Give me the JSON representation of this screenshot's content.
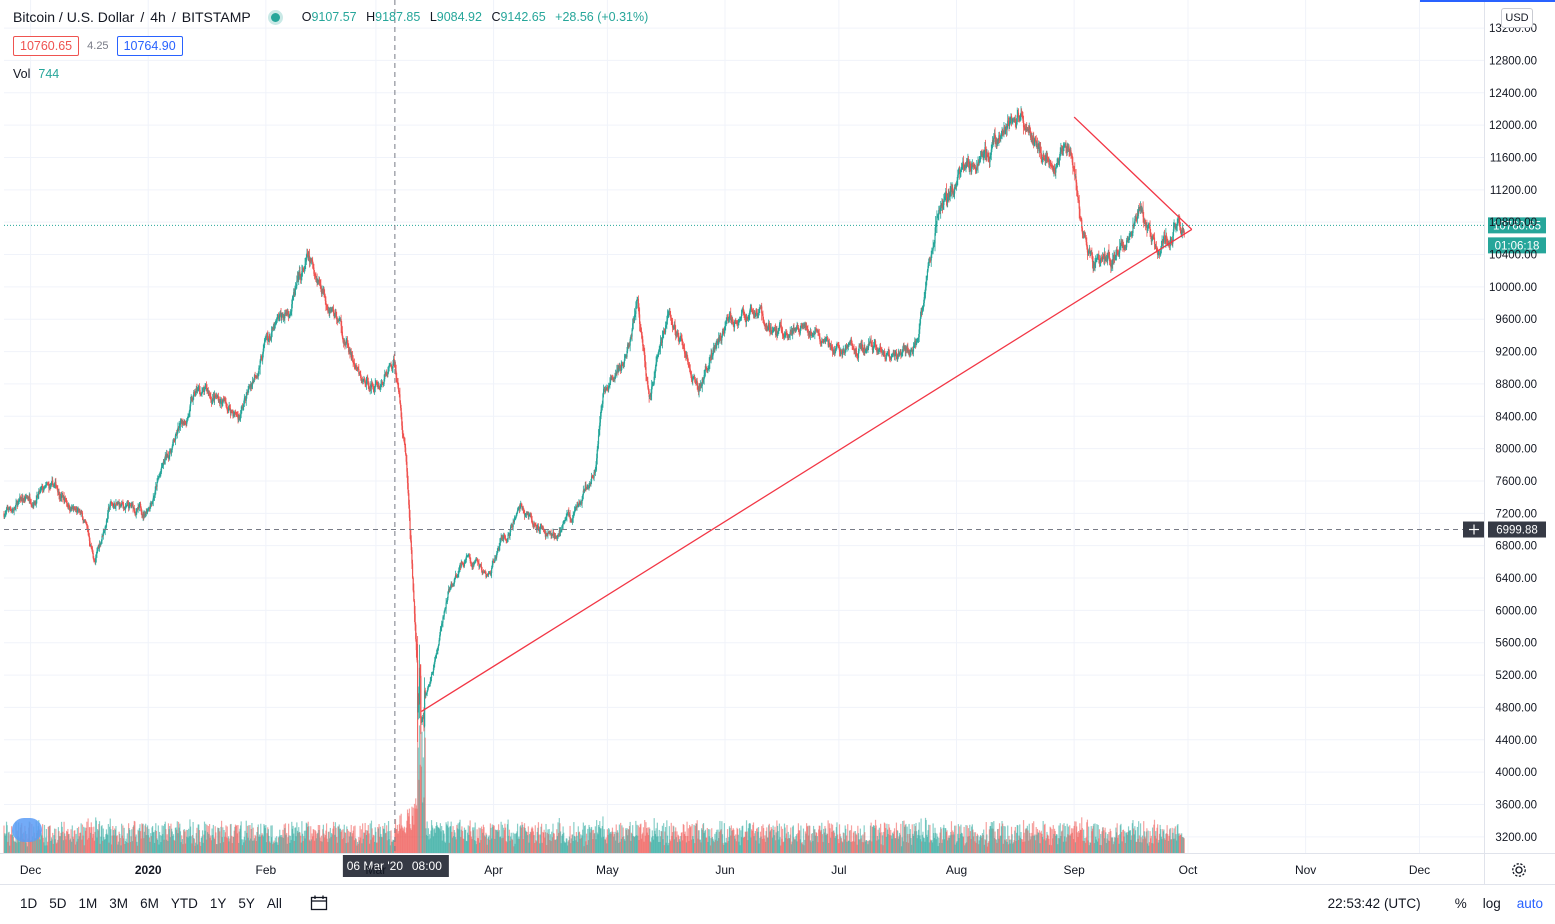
{
  "header": {
    "symbol": "Bitcoin / U.S. Dollar",
    "interval": "4h",
    "exchange": "BITSTAMP",
    "ohlc": {
      "o_label": "O",
      "o": "9107.57",
      "h_label": "H",
      "h": "9187.85",
      "l_label": "L",
      "l": "9084.92",
      "c_label": "C",
      "c": "9142.65",
      "change": "+28.56 (+0.31%)"
    },
    "bid": "10760.65",
    "spread": "4.25",
    "ask": "10764.90",
    "vol_label": "Vol",
    "vol_value": "744"
  },
  "currency_button": "USD",
  "crosshair": {
    "date_label": "06 Mar '20",
    "time_label": "08:00",
    "price_label": "6999.88"
  },
  "last_price": {
    "price": "10760.65",
    "countdown": "01:06:18"
  },
  "bottom_toolbar": {
    "ranges": [
      "1D",
      "5D",
      "1M",
      "3M",
      "6M",
      "YTD",
      "1Y",
      "5Y",
      "All"
    ],
    "clock": "22:53:42 (UTC)",
    "percent": "%",
    "log": "log",
    "auto": "auto"
  },
  "colors": {
    "up": "#26a69a",
    "down": "#ef5350",
    "trendline": "#f23645",
    "accent": "#2962ff"
  },
  "chart_data": {
    "type": "candlestick",
    "title": "Bitcoin / U.S. Dollar",
    "xlabel": "",
    "ylabel": "",
    "ylim": [
      3000,
      13300
    ],
    "grid": true,
    "y_ticks": [
      "3200.00",
      "3600.00",
      "4000.00",
      "4400.00",
      "4800.00",
      "5200.00",
      "5600.00",
      "6000.00",
      "6400.00",
      "6800.00",
      "7200.00",
      "7600.00",
      "8000.00",
      "8400.00",
      "8800.00",
      "9200.00",
      "9600.00",
      "10000.00",
      "10400.00",
      "10800.00",
      "11200.00",
      "11600.00",
      "12000.00",
      "12400.00",
      "12800.00",
      "13200.00"
    ],
    "x_ticks": [
      {
        "label": "Dec",
        "date": "2019-12-01"
      },
      {
        "label": "2020",
        "date": "2020-01-01"
      },
      {
        "label": "Feb",
        "date": "2020-02-01"
      },
      {
        "label": "Mar",
        "date": "2020-03-01"
      },
      {
        "label": "Apr",
        "date": "2020-04-01"
      },
      {
        "label": "May",
        "date": "2020-05-01"
      },
      {
        "label": "Jun",
        "date": "2020-06-01"
      },
      {
        "label": "Jul",
        "date": "2020-07-01"
      },
      {
        "label": "Aug",
        "date": "2020-08-01"
      },
      {
        "label": "Sep",
        "date": "2020-09-01"
      },
      {
        "label": "Oct",
        "date": "2020-10-01"
      },
      {
        "label": "Nov",
        "date": "2020-11-01"
      },
      {
        "label": "Dec",
        "date": "2020-12-01"
      }
    ],
    "price_path": [
      [
        "2019-11-24",
        7200
      ],
      [
        "2019-12-01",
        7400
      ],
      [
        "2019-12-08",
        7500
      ],
      [
        "2019-12-15",
        7100
      ],
      [
        "2019-12-18",
        6600
      ],
      [
        "2019-12-22",
        7300
      ],
      [
        "2019-12-31",
        7200
      ],
      [
        "2020-01-07",
        8000
      ],
      [
        "2020-01-14",
        8700
      ],
      [
        "2020-01-20",
        8600
      ],
      [
        "2020-01-25",
        8400
      ],
      [
        "2020-02-01",
        9300
      ],
      [
        "2020-02-07",
        9700
      ],
      [
        "2020-02-12",
        10300
      ],
      [
        "2020-02-15",
        10100
      ],
      [
        "2020-02-20",
        9600
      ],
      [
        "2020-02-26",
        8800
      ],
      [
        "2020-03-02",
        8800
      ],
      [
        "2020-03-06",
        9100
      ],
      [
        "2020-03-09",
        7900
      ],
      [
        "2020-03-12",
        5200
      ],
      [
        "2020-03-13",
        4800
      ],
      [
        "2020-03-16",
        5200
      ],
      [
        "2020-03-20",
        6200
      ],
      [
        "2020-03-25",
        6700
      ],
      [
        "2020-03-30",
        6400
      ],
      [
        "2020-04-03",
        6800
      ],
      [
        "2020-04-08",
        7300
      ],
      [
        "2020-04-15",
        6900
      ],
      [
        "2020-04-22",
        7100
      ],
      [
        "2020-04-28",
        7800
      ],
      [
        "2020-04-30",
        8700
      ],
      [
        "2020-05-06",
        9100
      ],
      [
        "2020-05-09",
        9800
      ],
      [
        "2020-05-12",
        8600
      ],
      [
        "2020-05-17",
        9600
      ],
      [
        "2020-05-25",
        8800
      ],
      [
        "2020-06-01",
        9500
      ],
      [
        "2020-06-08",
        9700
      ],
      [
        "2020-06-15",
        9400
      ],
      [
        "2020-06-22",
        9600
      ],
      [
        "2020-06-30",
        9150
      ],
      [
        "2020-07-07",
        9300
      ],
      [
        "2020-07-15",
        9150
      ],
      [
        "2020-07-22",
        9300
      ],
      [
        "2020-07-27",
        10900
      ],
      [
        "2020-08-02",
        11300
      ],
      [
        "2020-08-10",
        11700
      ],
      [
        "2020-08-17",
        12100
      ],
      [
        "2020-08-24",
        11600
      ],
      [
        "2020-08-31",
        11700
      ],
      [
        "2020-09-03",
        10700
      ],
      [
        "2020-09-06",
        10200
      ],
      [
        "2020-09-12",
        10400
      ],
      [
        "2020-09-18",
        10950
      ],
      [
        "2020-09-23",
        10400
      ],
      [
        "2020-09-28",
        10760
      ]
    ],
    "ranges": [
      {
        "label": "2020-03-12 to 2020-03-13 crash low",
        "low": 4500
      },
      {
        "label": "2020-08-17 high",
        "high": 12450
      }
    ],
    "trendlines": [
      {
        "from": [
          "2020-03-13",
          4750
        ],
        "to": [
          "2020-10-02",
          10710
        ]
      },
      {
        "from": [
          "2020-09-01",
          12100
        ],
        "to": [
          "2020-10-02",
          10710
        ]
      }
    ],
    "last_price": 10760.65,
    "crosshair_price": 6999.88,
    "crosshair_date": "2020-03-06",
    "volume": {
      "last": 744
    }
  }
}
